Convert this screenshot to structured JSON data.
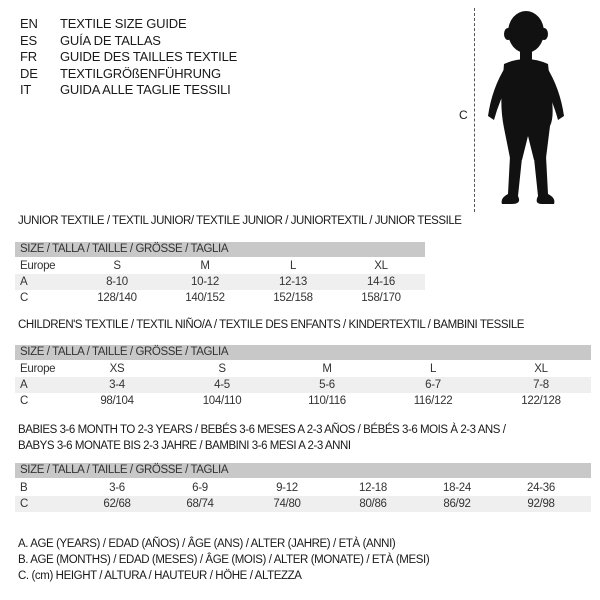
{
  "languages": [
    {
      "code": "EN",
      "text": "TEXTILE SIZE GUIDE"
    },
    {
      "code": "ES",
      "text": "GUÍA DE TALLAS"
    },
    {
      "code": "FR",
      "text": "GUIDE DES TAILLES TEXTILE"
    },
    {
      "code": "DE",
      "text": "TEXTILGRÖßENFÜHRUNG"
    },
    {
      "code": "IT",
      "text": "GUIDA ALLE TAGLIE TESSILI"
    }
  ],
  "figure": {
    "measure_label": "C"
  },
  "size_header": "SIZE / TALLA / TAILLE / GRÖSSE / TAGLIA",
  "junior": {
    "title": "JUNIOR TEXTILE / TEXTIL JUNIOR/ TEXTILE JUNIOR / JUNIORTEXTIL / JUNIOR TESSILE",
    "rows": [
      {
        "label": "Europe",
        "values": [
          "S",
          "M",
          "L",
          "XL"
        ]
      },
      {
        "label": "A",
        "values": [
          "8-10",
          "10-12",
          "12-13",
          "14-16"
        ]
      },
      {
        "label": "C",
        "values": [
          "128/140",
          "140/152",
          "152/158",
          "158/170"
        ]
      }
    ]
  },
  "children": {
    "title": "CHILDREN'S TEXTILE / TEXTIL NIÑO/A / TEXTILE DES ENFANTS / KINDERTEXTIL / BAMBINI TESSILE",
    "rows": [
      {
        "label": "Europe",
        "values": [
          "XS",
          "S",
          "M",
          "L",
          "XL"
        ]
      },
      {
        "label": "A",
        "values": [
          "3-4",
          "4-5",
          "5-6",
          "6-7",
          "7-8"
        ]
      },
      {
        "label": "C",
        "values": [
          "98/104",
          "104/110",
          "110/116",
          "116/122",
          "122/128"
        ]
      }
    ]
  },
  "babies": {
    "title_line1": "BABIES 3-6 MONTH TO 2-3 YEARS / BEBÉS 3-6 MESES A 2-3 AÑOS / BÉBÉS 3-6 MOIS À 2-3 ANS /",
    "title_line2": "BABYS 3-6 MONATE BIS 2-3 JAHRE / BAMBINI 3-6 MESI A 2-3 ANNI",
    "rows": [
      {
        "label": "B",
        "values": [
          "3-6",
          "6-9",
          "9-12",
          "12-18",
          "18-24",
          "24-36"
        ]
      },
      {
        "label": "C",
        "values": [
          "62/68",
          "68/74",
          "74/80",
          "80/86",
          "86/92",
          "92/98"
        ]
      }
    ]
  },
  "legend": [
    "A. AGE (YEARS) / EDAD (AÑOS) / ÂGE (ANS) / ALTER (JAHRE) / ETÀ (ANNI)",
    "B. AGE (MONTHS) / EDAD (MESES) / ÂGE (MOIS) / ALTER (MONATE) / ETÀ (MESI)",
    "C. (cm) HEIGHT / ALTURA / HAUTEUR / HÖHE / ALTEZZA"
  ],
  "colors": {
    "header_band": "#c8c8c8",
    "row_shade": "#efefef",
    "text": "#1a1a1a"
  }
}
